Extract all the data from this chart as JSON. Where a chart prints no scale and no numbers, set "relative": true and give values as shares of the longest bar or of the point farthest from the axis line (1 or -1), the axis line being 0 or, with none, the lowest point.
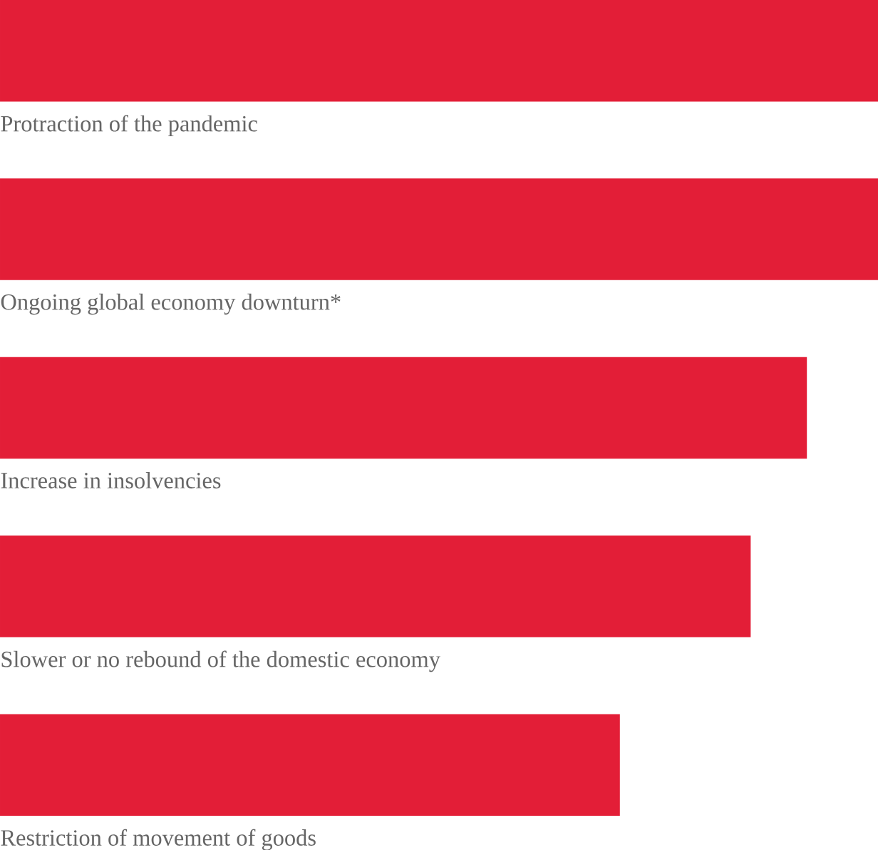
{
  "chart_data": {
    "type": "bar",
    "orientation": "horizontal",
    "relative": true,
    "color": "#e31e37",
    "categories": [
      "Protraction of the pandemic",
      "Ongoing global economy downturn*",
      "Increase in insolvencies",
      "Slower or no rebound of the domestic economy",
      "Restriction of movement of goods"
    ],
    "values": [
      1,
      1,
      0.919,
      0.855,
      0.706
    ]
  }
}
